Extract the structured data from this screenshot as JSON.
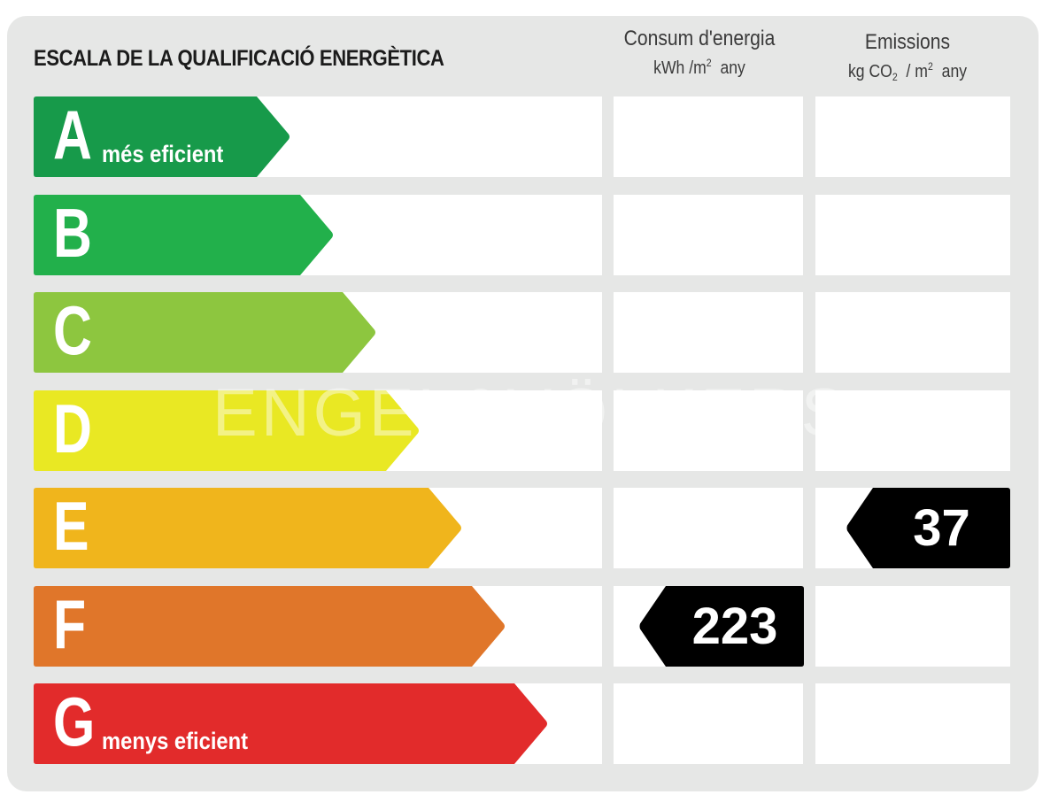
{
  "title": "ESCALA DE LA QUALIFICACIÓ ENERGÈTICA",
  "columns": {
    "consumption": {
      "heading": "Consum d'energia",
      "unit_prefix": "kWh /m",
      "unit_sup": "2",
      "unit_suffix": "any"
    },
    "emissions": {
      "heading": "Emissions",
      "unit_prefix": "kg CO",
      "unit_sub": "2",
      "unit_mid": "/ m",
      "unit_sup": "2",
      "unit_suffix": "any"
    }
  },
  "ratings": [
    {
      "letter": "A",
      "label": "més eficient",
      "color": "#179a4a"
    },
    {
      "letter": "B",
      "label": "",
      "color": "#22b04b"
    },
    {
      "letter": "C",
      "label": "",
      "color": "#8dc63f"
    },
    {
      "letter": "D",
      "label": "",
      "color": "#e9e823"
    },
    {
      "letter": "E",
      "label": "",
      "color": "#f0b51c"
    },
    {
      "letter": "F",
      "label": "",
      "color": "#e0762a"
    },
    {
      "letter": "G",
      "label": "menys eficient",
      "color": "#e22b2b"
    }
  ],
  "consumption_value": {
    "value": "223",
    "rating": "F"
  },
  "emissions_value": {
    "value": "37",
    "rating": "E"
  },
  "watermark": "ENGEL&VÖLKERS",
  "badge_color": "#000000"
}
